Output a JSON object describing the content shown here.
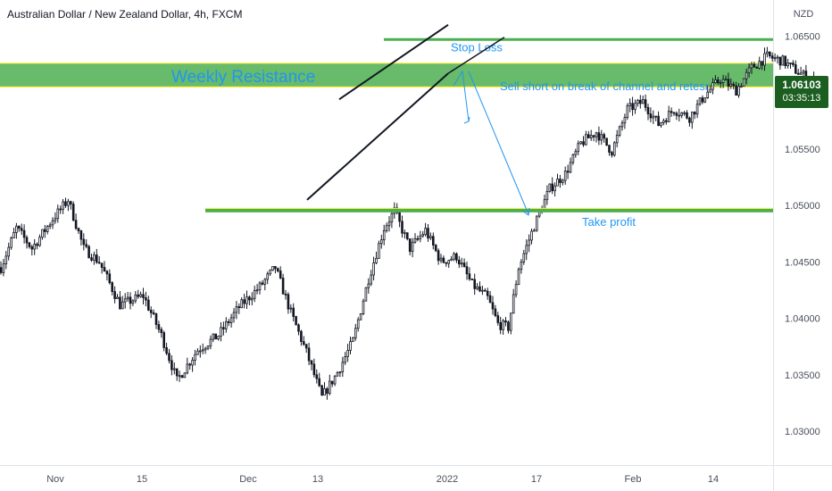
{
  "header": {
    "title": "Australian Dollar / New Zealand Dollar, 4h, FXCM"
  },
  "axis": {
    "currency": "NZD"
  },
  "price_tag": {
    "price": "1.06103",
    "countdown": "03:35:13"
  },
  "colors": {
    "up": "#131722",
    "zone": "#4caf50",
    "zone_edge": "#ffeb3b",
    "annotation": "#2196f3",
    "price_tag": "#1b5e20"
  },
  "chart_data": {
    "type": "candlestick",
    "ylim": [
      1.027,
      1.0682
    ],
    "y_ticks": [
      "1.03000",
      "1.03500",
      "1.04000",
      "1.04500",
      "1.05000",
      "1.05500",
      "1.06000",
      "1.06500"
    ],
    "x_ticks": [
      "Nov",
      "15",
      "Dec",
      "13",
      "2022",
      "17",
      "Feb",
      "14"
    ],
    "price_anchors": [
      [
        0,
        1.0445
      ],
      [
        6,
        1.048
      ],
      [
        12,
        1.0462
      ],
      [
        20,
        1.0488
      ],
      [
        26,
        1.0505
      ],
      [
        32,
        1.0462
      ],
      [
        38,
        1.045
      ],
      [
        46,
        1.0412
      ],
      [
        55,
        1.042
      ],
      [
        62,
        1.0385
      ],
      [
        68,
        1.0345
      ],
      [
        76,
        1.0372
      ],
      [
        84,
        1.0385
      ],
      [
        92,
        1.041
      ],
      [
        100,
        1.0428
      ],
      [
        106,
        1.0445
      ],
      [
        112,
        1.0405
      ],
      [
        118,
        1.037
      ],
      [
        124,
        1.033
      ],
      [
        130,
        1.0352
      ],
      [
        136,
        1.038
      ],
      [
        142,
        1.0435
      ],
      [
        148,
        1.048
      ],
      [
        152,
        1.0495
      ],
      [
        158,
        1.0462
      ],
      [
        164,
        1.0478
      ],
      [
        170,
        1.045
      ],
      [
        176,
        1.0455
      ],
      [
        182,
        1.043
      ],
      [
        188,
        1.0418
      ],
      [
        192,
        1.0395
      ],
      [
        196,
        1.0392
      ],
      [
        200,
        1.0445
      ],
      [
        206,
        1.0482
      ],
      [
        212,
        1.0515
      ],
      [
        218,
        1.0528
      ],
      [
        224,
        1.0555
      ],
      [
        230,
        1.0565
      ],
      [
        236,
        1.0548
      ],
      [
        242,
        1.0585
      ],
      [
        248,
        1.0592
      ],
      [
        254,
        1.0572
      ],
      [
        260,
        1.0585
      ],
      [
        266,
        1.0578
      ],
      [
        272,
        1.0598
      ],
      [
        278,
        1.0612
      ],
      [
        284,
        1.0602
      ],
      [
        290,
        1.0622
      ],
      [
        296,
        1.0632
      ],
      [
        302,
        1.0628
      ],
      [
        308,
        1.0618
      ],
      [
        314,
        1.061
      ],
      [
        318,
        1.0608
      ]
    ],
    "resistance_zone": {
      "label": "Weekly Resistance",
      "from": 1.0605,
      "to": 1.0626
    },
    "stop_loss": {
      "label": "Stop Loss",
      "price": 1.0647
    },
    "take_profit": {
      "label": "Take profit",
      "price": 1.04955
    },
    "channel": {
      "upper": {
        "from": [
          1.0594,
          "Dec 15"
        ],
        "to": [
          1.066,
          "Dec 31"
        ]
      },
      "lower": {
        "from": [
          1.0505,
          "Dec 10"
        ],
        "to": [
          1.0617,
          "Dec 31"
        ]
      }
    },
    "note": "Sell short on break of channel and retesr"
  }
}
